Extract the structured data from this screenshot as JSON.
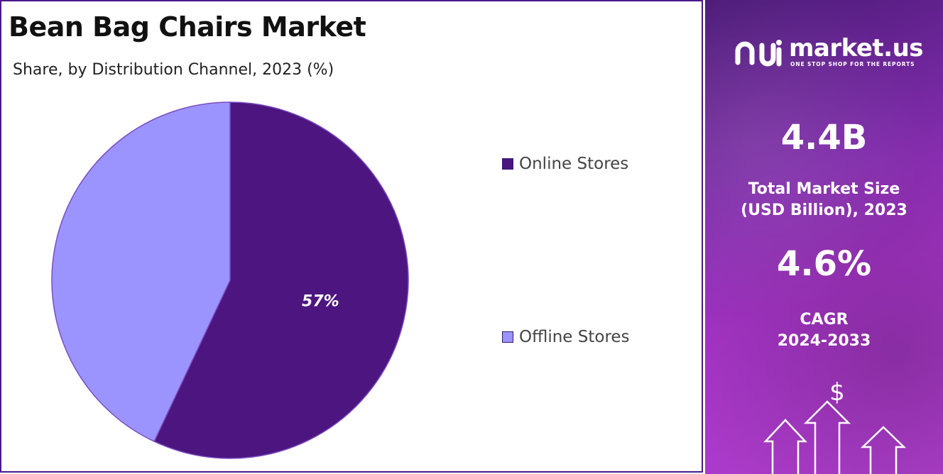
{
  "title": "Bean Bag Chairs Market",
  "subtitle": "Share, by Distribution Channel, 2023 (%)",
  "chart_data": {
    "type": "pie",
    "categories": [
      "Online Stores",
      "Offline Stores"
    ],
    "values": [
      57,
      43
    ],
    "data_labels": [
      "57%",
      ""
    ],
    "colors": [
      "#4c1580",
      "#9b94ff"
    ],
    "start_angle_deg": 0,
    "direction": "clockwise",
    "legend_position": "right"
  },
  "side_panel": {
    "logo_text": "market.us",
    "logo_tagline": "ONE STOP SHOP FOR THE REPORTS",
    "market_size_value": "4.4B",
    "market_size_label_line1": "Total Market Size",
    "market_size_label_line2": "(USD Billion), 2023",
    "cagr_value": "4.6%",
    "cagr_label_line1": "CAGR",
    "cagr_label_line2": "2024-2033",
    "currency_symbol": "$",
    "icons": [
      "market-us-logo-icon",
      "dollar-sign-icon",
      "up-arrow-icon"
    ]
  }
}
